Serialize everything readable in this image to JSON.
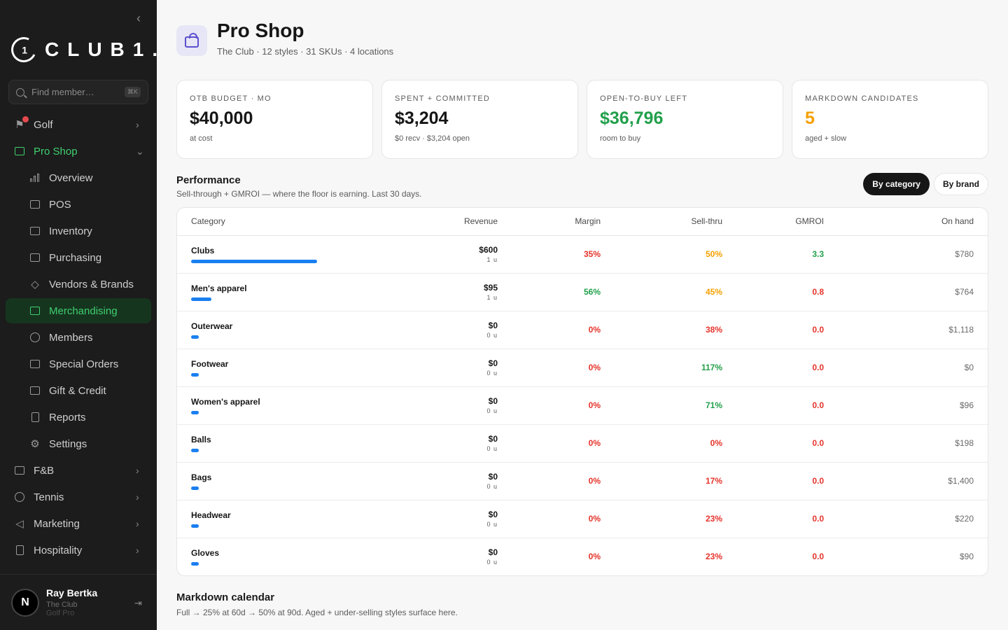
{
  "sidebar": {
    "brand": "CLUB1.",
    "brand_mark": "1",
    "search_placeholder": "Find member…",
    "search_kbd": "⌘K",
    "items": [
      {
        "label": "Golf",
        "icon": "flag-icon"
      },
      {
        "label": "Pro Shop",
        "icon": "shopping-bag-icon"
      },
      {
        "label": "Overview",
        "icon": "bar-chart-icon"
      },
      {
        "label": "POS",
        "icon": "credit-card-icon"
      },
      {
        "label": "Inventory",
        "icon": "archive-icon"
      },
      {
        "label": "Purchasing",
        "icon": "receipt-icon"
      },
      {
        "label": "Vendors & Brands",
        "icon": "tag-icon"
      },
      {
        "label": "Merchandising",
        "icon": "presentation-icon"
      },
      {
        "label": "Members",
        "icon": "users-icon"
      },
      {
        "label": "Special Orders",
        "icon": "gift-box-icon"
      },
      {
        "label": "Gift & Credit",
        "icon": "gift-icon"
      },
      {
        "label": "Reports",
        "icon": "document-icon"
      },
      {
        "label": "Settings",
        "icon": "gear-icon"
      },
      {
        "label": "F&B",
        "icon": "food-icon"
      },
      {
        "label": "Tennis",
        "icon": "tennis-icon"
      },
      {
        "label": "Marketing",
        "icon": "megaphone-icon"
      },
      {
        "label": "Hospitality",
        "icon": "building-icon"
      }
    ],
    "user": {
      "initial": "N",
      "name": "Ray Bertka",
      "club": "The Club",
      "role": "Golf Pro"
    }
  },
  "header": {
    "title": "Pro Shop",
    "subtitle": "The Club · 12 styles · 31 SKUs · 4 locations"
  },
  "kpis": [
    {
      "label": "OTB BUDGET · MO",
      "value": "$40,000",
      "sub": "at cost",
      "color": "#161616"
    },
    {
      "label": "SPENT + COMMITTED",
      "value": "$3,204",
      "sub": "$0 recv · $3,204 open",
      "color": "#161616"
    },
    {
      "label": "OPEN-TO-BUY LEFT",
      "value": "$36,796",
      "sub": "room to buy",
      "color": "#22a04b"
    },
    {
      "label": "MARKDOWN CANDIDATES",
      "value": "5",
      "sub": "aged + slow",
      "color": "#f5a000"
    }
  ],
  "performance": {
    "title": "Performance",
    "subtitle": "Sell-through + GMROI — where the floor is earning. Last 30 days.",
    "toggle_category": "By category",
    "toggle_brand": "By brand",
    "columns": [
      "Category",
      "Revenue",
      "Margin",
      "Sell-thru",
      "GMROI",
      "On hand"
    ],
    "rows": [
      {
        "category": "Clubs",
        "bar_share": 1.0,
        "revenue": "$600",
        "units": "1 u",
        "margin": "35%",
        "margin_c": "red",
        "sellthru": "50%",
        "sellthru_c": "org",
        "gmroi": "3.3",
        "gmroi_c": "grn",
        "onhand": "$780"
      },
      {
        "category": "Men's apparel",
        "bar_share": 0.16,
        "revenue": "$95",
        "units": "1 u",
        "margin": "56%",
        "margin_c": "grn",
        "sellthru": "45%",
        "sellthru_c": "org",
        "gmroi": "0.8",
        "gmroi_c": "red",
        "onhand": "$764"
      },
      {
        "category": "Outerwear",
        "bar_share": 0,
        "revenue": "$0",
        "units": "0 u",
        "margin": "0%",
        "margin_c": "red",
        "sellthru": "38%",
        "sellthru_c": "red",
        "gmroi": "0.0",
        "gmroi_c": "red",
        "onhand": "$1,118"
      },
      {
        "category": "Footwear",
        "bar_share": 0,
        "revenue": "$0",
        "units": "0 u",
        "margin": "0%",
        "margin_c": "red",
        "sellthru": "117%",
        "sellthru_c": "grn",
        "gmroi": "0.0",
        "gmroi_c": "red",
        "onhand": "$0"
      },
      {
        "category": "Women's apparel",
        "bar_share": 0,
        "revenue": "$0",
        "units": "0 u",
        "margin": "0%",
        "margin_c": "red",
        "sellthru": "71%",
        "sellthru_c": "grn",
        "gmroi": "0.0",
        "gmroi_c": "red",
        "onhand": "$96"
      },
      {
        "category": "Balls",
        "bar_share": 0,
        "revenue": "$0",
        "units": "0 u",
        "margin": "0%",
        "margin_c": "red",
        "sellthru": "0%",
        "sellthru_c": "red",
        "gmroi": "0.0",
        "gmroi_c": "red",
        "onhand": "$198"
      },
      {
        "category": "Bags",
        "bar_share": 0,
        "revenue": "$0",
        "units": "0 u",
        "margin": "0%",
        "margin_c": "red",
        "sellthru": "17%",
        "sellthru_c": "red",
        "gmroi": "0.0",
        "gmroi_c": "red",
        "onhand": "$1,400"
      },
      {
        "category": "Headwear",
        "bar_share": 0,
        "revenue": "$0",
        "units": "0 u",
        "margin": "0%",
        "margin_c": "red",
        "sellthru": "23%",
        "sellthru_c": "red",
        "gmroi": "0.0",
        "gmroi_c": "red",
        "onhand": "$220"
      },
      {
        "category": "Gloves",
        "bar_share": 0,
        "revenue": "$0",
        "units": "0 u",
        "margin": "0%",
        "margin_c": "red",
        "sellthru": "23%",
        "sellthru_c": "red",
        "gmroi": "0.0",
        "gmroi_c": "red",
        "onhand": "$90"
      }
    ]
  },
  "markdown": {
    "title": "Markdown calendar",
    "subtitle": "Full → 25% at 60d → 50% at 90d. Aged + under-selling styles surface here."
  }
}
